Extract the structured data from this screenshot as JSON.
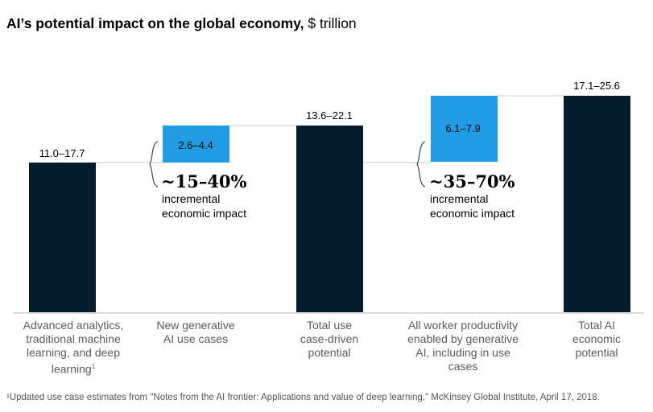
{
  "chart_data": {
    "type": "bar",
    "subtype": "waterfall",
    "title": "AI’s potential impact on the global economy,",
    "title_unit": "$ trillion",
    "categories": [
      "Advanced analytics, traditional machine learning, and deep learning",
      "New generative AI use cases",
      "Total use case-driven potential",
      "All worker productivity enabled by generative AI, including in use cases",
      "Total AI economic potential"
    ],
    "category_lines": [
      [
        "Advanced analytics,",
        "traditional machine",
        "learning, and deep",
        "learning"
      ],
      [
        "New generative",
        "AI use cases"
      ],
      [
        "Total use",
        "case-driven",
        "potential"
      ],
      [
        "All worker productivity",
        "enabled by generative",
        "AI, including in use",
        "cases"
      ],
      [
        "Total AI",
        "economic",
        "potential"
      ]
    ],
    "footnote_mark": "1",
    "bars": [
      {
        "kind": "total",
        "low": 11.0,
        "high": 17.7,
        "label": "11.0–17.7",
        "color": "#051c2c"
      },
      {
        "kind": "increment",
        "low": 2.6,
        "high": 4.4,
        "label": "2.6–4.4",
        "color": "#1f9ce4"
      },
      {
        "kind": "total",
        "low": 13.6,
        "high": 22.1,
        "label": "13.6–22.1",
        "color": "#051c2c"
      },
      {
        "kind": "increment",
        "low": 6.1,
        "high": 7.9,
        "label": "6.1–7.9",
        "color": "#1f9ce4"
      },
      {
        "kind": "total",
        "low": 17.1,
        "high": 25.6,
        "label": "17.1–25.6",
        "color": "#051c2c"
      }
    ],
    "annotations": [
      {
        "big": "~15–40%",
        "small": [
          "incremental",
          "economic impact"
        ]
      },
      {
        "big": "~35–70%",
        "small": [
          "incremental",
          "economic impact"
        ]
      }
    ]
  },
  "footnote": "¹Updated use case estimates from \"Notes from the AI frontier: Applications and value of deep learning,\" McKinsey Global Institute, April 17, 2018."
}
